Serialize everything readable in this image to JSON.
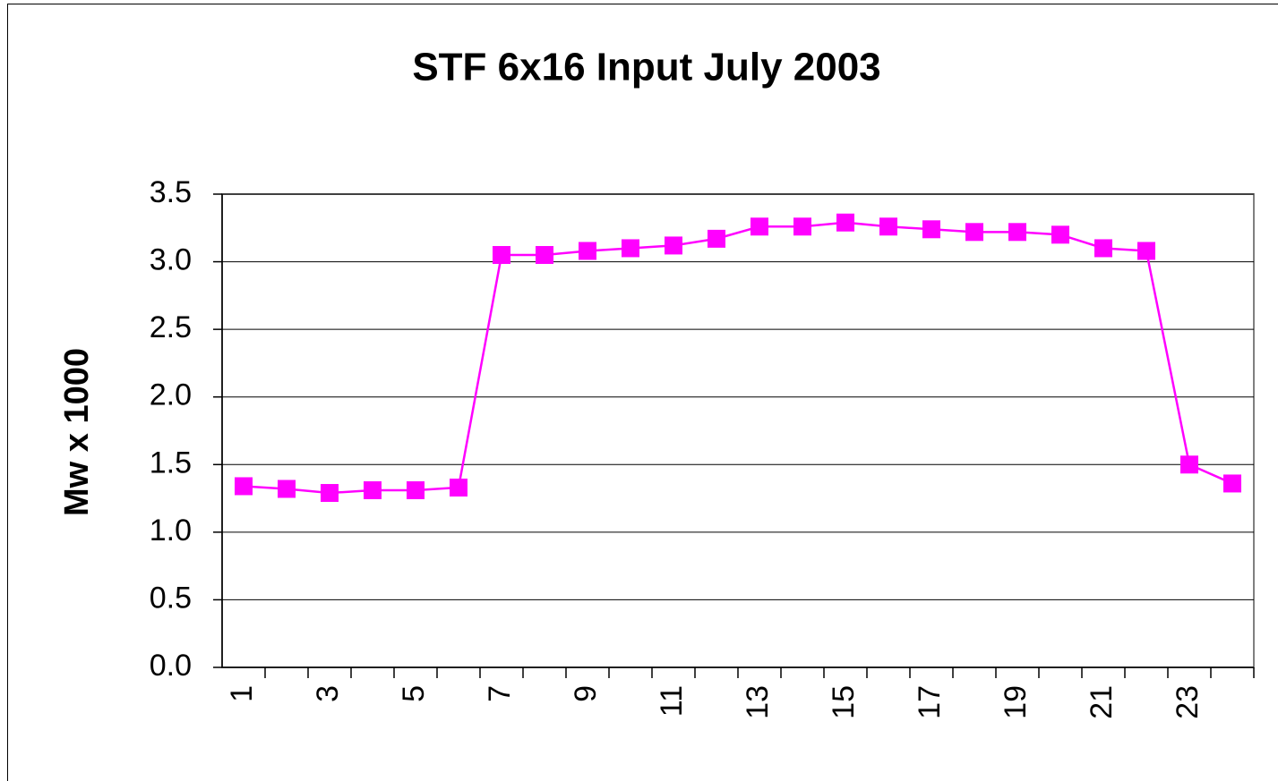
{
  "chart_data": {
    "type": "line",
    "title": "STF 6x16 Input July 2003",
    "y_label": "Mw x 1000",
    "categories": [
      "1",
      null,
      "3",
      null,
      "5",
      null,
      "7",
      null,
      "9",
      null,
      "11",
      null,
      "13",
      null,
      "15",
      null,
      "17",
      null,
      "19",
      null,
      "21",
      null,
      "23",
      null
    ],
    "values": [
      1.34,
      1.32,
      1.29,
      1.31,
      1.31,
      1.33,
      3.05,
      3.05,
      3.08,
      3.1,
      3.12,
      3.17,
      3.26,
      3.26,
      3.29,
      3.26,
      3.24,
      3.22,
      3.22,
      3.2,
      3.1,
      3.08,
      1.5,
      1.36
    ],
    "color": "#ff00ff",
    "ylim": [
      0,
      3.5
    ],
    "yticks": [
      {
        "value": 0,
        "label": "0.0"
      },
      0.5,
      {
        "value": 1,
        "label": "1.0"
      },
      1.5,
      {
        "value": 2,
        "label": "2.0"
      },
      2.5,
      {
        "value": 3,
        "label": "3.0"
      },
      3.5
    ],
    "grid": true
  }
}
